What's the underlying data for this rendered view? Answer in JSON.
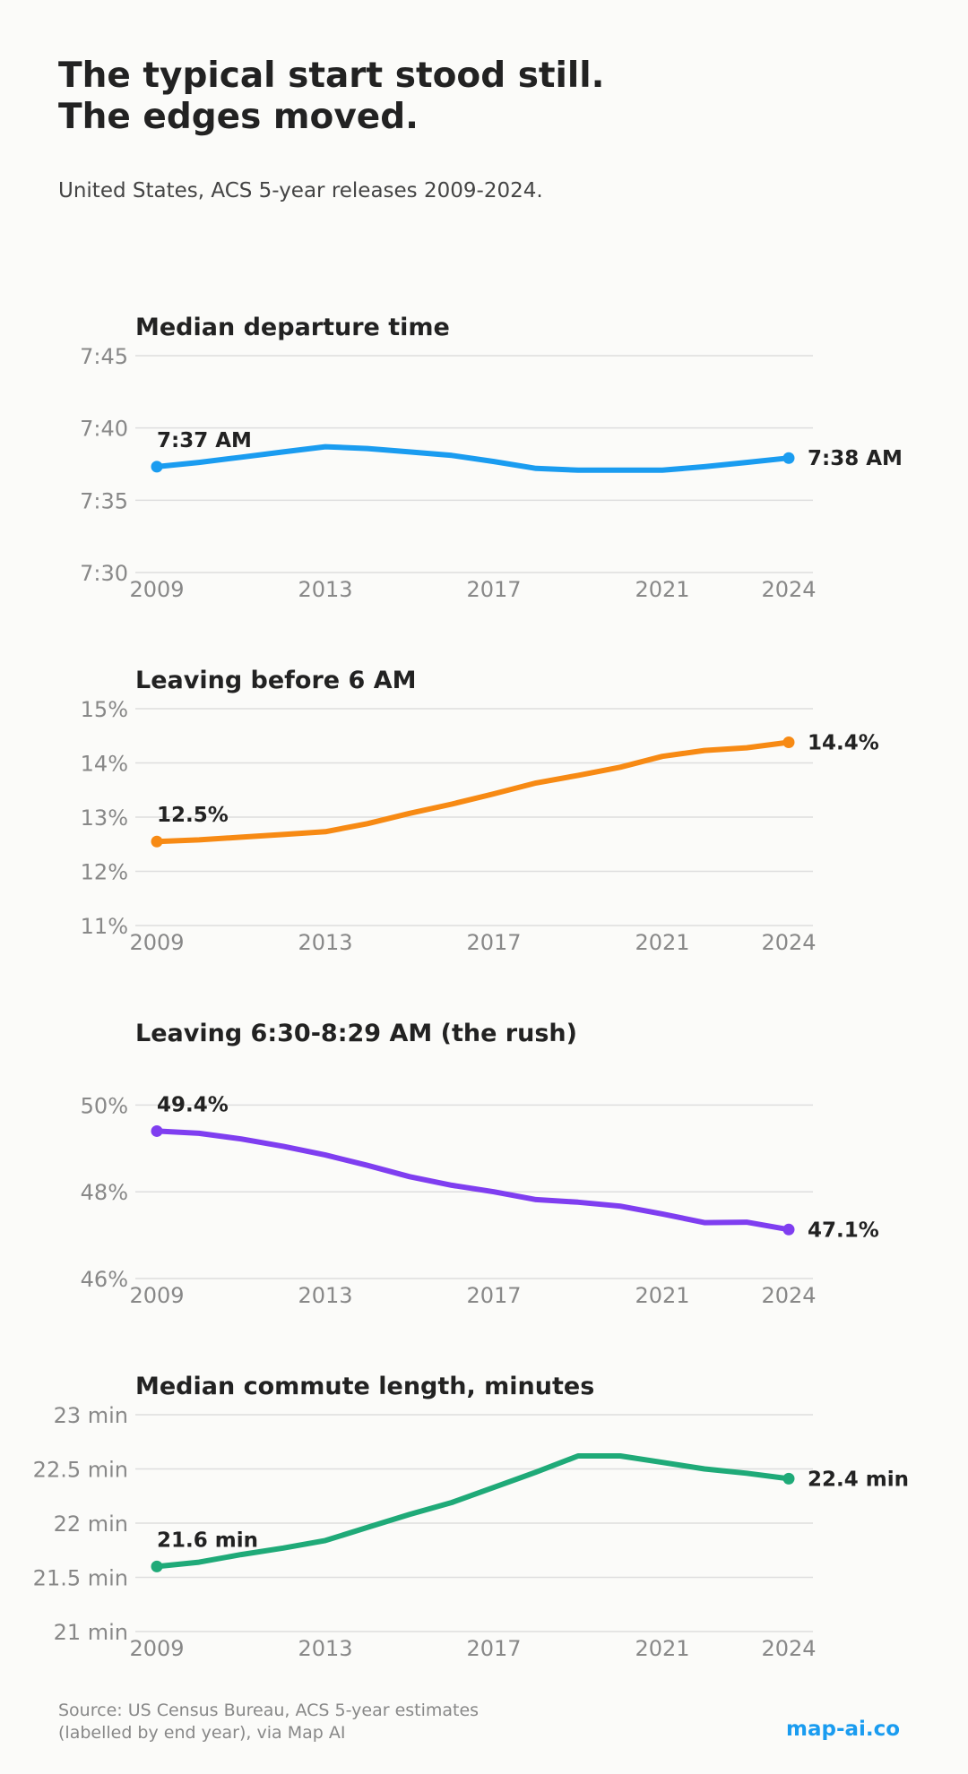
{
  "title": {
    "line1": "The typical start stood still.",
    "line2": "The edges moved."
  },
  "subtitle": "United States, ACS 5-year releases 2009-2024.",
  "source": {
    "line1": "Source: US Census Bureau, ACS 5-year estimates",
    "line2": "(labelled by end year), via Map AI"
  },
  "brand": "map-ai.co",
  "chart_data": [
    {
      "type": "line",
      "title": "Median departure time",
      "color": "#1a9cf0",
      "x": [
        2009,
        2010,
        2011,
        2012,
        2013,
        2014,
        2015,
        2016,
        2017,
        2018,
        2019,
        2020,
        2021,
        2022,
        2023,
        2024
      ],
      "values": [
        7.622,
        7.627,
        7.633,
        7.639,
        7.645,
        7.643,
        7.639,
        7.635,
        7.628,
        7.62,
        7.618,
        7.618,
        7.618,
        7.622,
        7.627,
        7.632
      ],
      "ylim": [
        7.5,
        7.75
      ],
      "yticks": [
        {
          "value": 7.75,
          "label": "7:45"
        },
        {
          "value": 7.6667,
          "label": "7:40"
        },
        {
          "value": 7.5833,
          "label": "7:35"
        },
        {
          "value": 7.5,
          "label": "7:30"
        }
      ],
      "xticks": [
        "2009",
        "2013",
        "2017",
        "2021",
        "2024"
      ],
      "start_label": "7:37 AM",
      "end_label": "7:38 AM",
      "grid": true
    },
    {
      "type": "line",
      "title": "Leaving before 6 AM",
      "color": "#f78a14",
      "x": [
        2009,
        2010,
        2011,
        2012,
        2013,
        2014,
        2015,
        2016,
        2017,
        2018,
        2019,
        2020,
        2021,
        2022,
        2023,
        2024
      ],
      "values": [
        12.55,
        12.58,
        12.63,
        12.68,
        12.73,
        12.88,
        13.07,
        13.24,
        13.43,
        13.63,
        13.77,
        13.92,
        14.12,
        14.23,
        14.28,
        14.38
      ],
      "ylim": [
        11,
        15
      ],
      "yticks": [
        {
          "value": 15,
          "label": "15%"
        },
        {
          "value": 14,
          "label": "14%"
        },
        {
          "value": 13,
          "label": "13%"
        },
        {
          "value": 12,
          "label": "12%"
        },
        {
          "value": 11,
          "label": "11%"
        }
      ],
      "xticks": [
        "2009",
        "2013",
        "2017",
        "2021",
        "2024"
      ],
      "start_label": "12.5%",
      "end_label": "14.4%",
      "grid": true
    },
    {
      "type": "line",
      "title": "Leaving 6:30-8:29 AM (the rush)",
      "color": "#7f3ef0",
      "x": [
        2009,
        2010,
        2011,
        2012,
        2013,
        2014,
        2015,
        2016,
        2017,
        2018,
        2019,
        2020,
        2021,
        2022,
        2023,
        2024
      ],
      "values": [
        49.4,
        49.35,
        49.22,
        49.05,
        48.85,
        48.61,
        48.35,
        48.15,
        48.0,
        47.82,
        47.76,
        47.67,
        47.49,
        47.29,
        47.3,
        47.13
      ],
      "ylim": [
        46,
        51
      ],
      "yticks": [
        {
          "value": 50,
          "label": "50%"
        },
        {
          "value": 48,
          "label": "48%"
        },
        {
          "value": 46,
          "label": "46%"
        }
      ],
      "xticks": [
        "2009",
        "2013",
        "2017",
        "2021",
        "2024"
      ],
      "start_label": "49.4%",
      "end_label": "47.1%",
      "grid": true
    },
    {
      "type": "line",
      "title": "Median commute length, minutes",
      "color": "#1faa78",
      "x": [
        2009,
        2010,
        2011,
        2012,
        2013,
        2014,
        2015,
        2016,
        2017,
        2018,
        2019,
        2020,
        2021,
        2022,
        2023,
        2024
      ],
      "values": [
        21.6,
        21.64,
        21.71,
        21.77,
        21.84,
        21.96,
        22.08,
        22.19,
        22.33,
        22.47,
        22.62,
        22.62,
        22.56,
        22.5,
        22.46,
        22.41
      ],
      "ylim": [
        21,
        23
      ],
      "yticks": [
        {
          "value": 23,
          "label": "23 min"
        },
        {
          "value": 22.5,
          "label": "22.5 min"
        },
        {
          "value": 22,
          "label": "22 min"
        },
        {
          "value": 21.5,
          "label": "21.5 min"
        },
        {
          "value": 21,
          "label": "21 min"
        }
      ],
      "xticks": [
        "2009",
        "2013",
        "2017",
        "2021",
        "2024"
      ],
      "start_label": "21.6 min",
      "end_label": "22.4 min",
      "grid": true
    }
  ]
}
